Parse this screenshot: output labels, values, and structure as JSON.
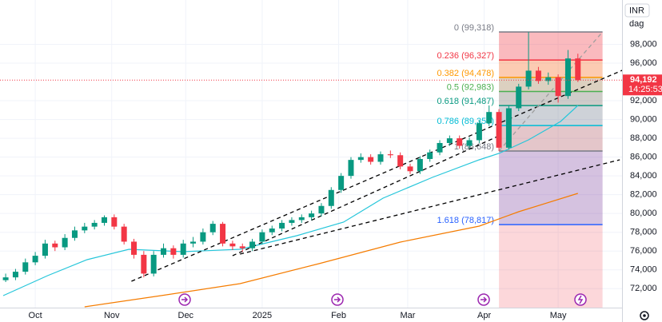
{
  "chart_data": {
    "type": "candlestick",
    "currency": "INR",
    "timeframe": "dag",
    "last_price": {
      "value": 94192,
      "label": "94,192"
    },
    "countdown": "14:25:53",
    "xlim": [
      -14.3,
      237.9
    ],
    "ylim": [
      69980,
      102720
    ],
    "xticks": [
      {
        "value": 0,
        "label": "Oct"
      },
      {
        "value": 31,
        "label": "Nov"
      },
      {
        "value": 61,
        "label": "Dec"
      },
      {
        "value": 92,
        "label": "2025"
      },
      {
        "value": 123,
        "label": "Feb"
      },
      {
        "value": 151,
        "label": "Mar"
      },
      {
        "value": 182,
        "label": "Apr"
      },
      {
        "value": 212,
        "label": "May"
      }
    ],
    "yticks": [
      {
        "value": 72000,
        "label": "72,000"
      },
      {
        "value": 74000,
        "label": "74,000"
      },
      {
        "value": 76000,
        "label": "76,000"
      },
      {
        "value": 78000,
        "label": "78,000"
      },
      {
        "value": 80000,
        "label": "80,000"
      },
      {
        "value": 82000,
        "label": "82,000"
      },
      {
        "value": 84000,
        "label": "84,000"
      },
      {
        "value": 86000,
        "label": "86,000"
      },
      {
        "value": 88000,
        "label": "88,000"
      },
      {
        "value": 90000,
        "label": "90,000"
      },
      {
        "value": 92000,
        "label": "92,000"
      },
      {
        "value": 96000,
        "label": "96,000"
      },
      {
        "value": 98000,
        "label": "98,000"
      }
    ],
    "grid": true,
    "candles": {
      "up_color": "#089981",
      "down_color": "#f23645",
      "x": [
        -12,
        -8,
        -4,
        0,
        4,
        8,
        12,
        16,
        20,
        24,
        28,
        32,
        36,
        40,
        44,
        48,
        52,
        56,
        60,
        64,
        68,
        72,
        76,
        80,
        84,
        88,
        92,
        96,
        100,
        104,
        108,
        112,
        116,
        120,
        124,
        128,
        132,
        136,
        140,
        144,
        148,
        152,
        156,
        160,
        164,
        168,
        172,
        176,
        180,
        184,
        188,
        192,
        196,
        200,
        204,
        208,
        212,
        216,
        220
      ],
      "open": [
        72900,
        73200,
        73800,
        74800,
        75500,
        76800,
        76400,
        77400,
        78200,
        78600,
        79000,
        79600,
        78600,
        77000,
        75600,
        73600,
        75600,
        76300,
        75600,
        76800,
        77000,
        78000,
        78900,
        76800,
        76500,
        76300,
        77000,
        78000,
        78400,
        79000,
        79300,
        79600,
        80000,
        80800,
        82500,
        84000,
        85700,
        86000,
        85500,
        86300,
        86200,
        85000,
        84500,
        85800,
        86500,
        87500,
        88000,
        87200,
        87800,
        89600,
        90800,
        87000,
        91200,
        93500,
        95200,
        94100,
        94500,
        92500,
        96500
      ],
      "high": [
        73600,
        74100,
        75200,
        75900,
        77200,
        77100,
        77800,
        78600,
        79000,
        79300,
        79800,
        79900,
        78900,
        77300,
        76000,
        76000,
        76800,
        76600,
        77200,
        77500,
        78400,
        79200,
        79100,
        77100,
        76800,
        77300,
        78300,
        78700,
        79300,
        79600,
        79900,
        80300,
        81100,
        82800,
        84300,
        86000,
        86400,
        86300,
        86600,
        86700,
        86500,
        85300,
        86100,
        86800,
        87800,
        88300,
        88300,
        88100,
        89900,
        91500,
        91100,
        91500,
        93800,
        99318,
        95600,
        95000,
        94800,
        97400,
        97000
      ],
      "low": [
        72700,
        72900,
        73500,
        74500,
        75200,
        76000,
        76100,
        77100,
        77900,
        78300,
        78700,
        78300,
        76700,
        75200,
        73200,
        73300,
        75300,
        75200,
        75300,
        76400,
        76700,
        77700,
        76500,
        76100,
        75900,
        76000,
        76700,
        77700,
        78100,
        78700,
        79000,
        79300,
        79700,
        80500,
        82200,
        83700,
        85400,
        85200,
        85200,
        85900,
        84700,
        84200,
        84200,
        85500,
        86200,
        87200,
        86900,
        86900,
        87500,
        89300,
        86648,
        86800,
        90900,
        93200,
        93800,
        93700,
        91800,
        92200,
        94000
      ],
      "close": [
        73200,
        73800,
        74800,
        75500,
        76800,
        76400,
        77400,
        78200,
        78600,
        79000,
        79600,
        78600,
        77000,
        75600,
        73600,
        75600,
        76300,
        75600,
        76800,
        77000,
        78000,
        78900,
        76800,
        76500,
        76300,
        77000,
        78000,
        78400,
        79000,
        79300,
        79600,
        80000,
        80800,
        82500,
        84000,
        85700,
        86000,
        85500,
        86300,
        86200,
        85000,
        84500,
        85800,
        86500,
        87500,
        88000,
        87200,
        87800,
        89600,
        90800,
        87000,
        91200,
        93500,
        95200,
        94100,
        94500,
        92500,
        96500,
        94192
      ]
    },
    "lines": [
      {
        "color": "#26c6da",
        "x": [
          -13,
          5,
          21,
          38,
          60,
          83,
          106,
          125,
          141,
          161,
          180,
          188,
          200,
          213,
          220
        ],
        "values": [
          71257,
          73383,
          75083,
          76190,
          75934,
          76190,
          77635,
          79080,
          81630,
          83842,
          85713,
          86393,
          87838,
          89794,
          91495
        ]
      },
      {
        "color": "#f57c00",
        "x": [
          20,
          51,
          83,
          115,
          148,
          180,
          196,
          220
        ],
        "values": [
          70066,
          71257,
          72532,
          74658,
          76954,
          78655,
          80185,
          82141
        ]
      }
    ],
    "trendlines": [
      {
        "color": "#000000",
        "x": [
          39,
          238
        ],
        "values": [
          72788,
          95236
        ]
      },
      {
        "color": "#000000",
        "x": [
          80,
          188
        ],
        "values": [
          75509,
          88264
        ]
      },
      {
        "color": "#000000",
        "x": [
          83,
          237
        ],
        "values": [
          75679,
          85713
        ]
      },
      {
        "color": "#9e9e9e",
        "x": [
          188,
          230
        ],
        "values": [
          86648,
          99318
        ]
      }
    ],
    "fib": {
      "x": [
        188,
        230
      ],
      "base_color": "#f23645",
      "levels": [
        {
          "label": "0 (99,318)",
          "value": 99318,
          "color": "#787b86"
        },
        {
          "label": "0.236 (96,327)",
          "value": 96327,
          "color": "#f23645"
        },
        {
          "label": "0.382 (94,478)",
          "value": 94478,
          "color": "#ff9800"
        },
        {
          "label": "0.5 (92,983)",
          "value": 92983,
          "color": "#4caf50"
        },
        {
          "label": "0.618 (91,487)",
          "value": 91487,
          "color": "#089981"
        },
        {
          "label": "0.786 (89,359)",
          "value": 89359,
          "color": "#00bcd4"
        },
        {
          "label": "1 (86,648)",
          "value": 86648,
          "color": "#787b86"
        },
        {
          "label": "1.618 (78,817)",
          "value": 78817,
          "color": "#2962ff"
        }
      ]
    }
  }
}
